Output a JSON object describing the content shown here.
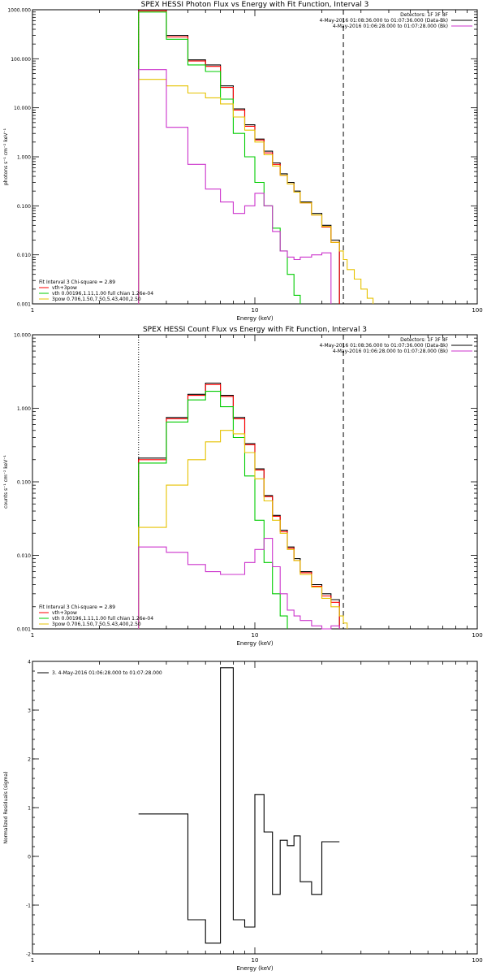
{
  "colors": {
    "total": "#ff0000",
    "data": "#000000",
    "vth": "#00cc00",
    "bpow": "#e6c200",
    "bk": "#cc33cc",
    "resid": "#000000"
  },
  "chart_data": [
    {
      "type": "line",
      "title": "SPEX HESSI Photon Flux vs Energy with Fit Function, Interval 3",
      "xlabel": "Energy (keV)",
      "ylabel": "photons s⁻¹ cm⁻² keV⁻¹",
      "xscale": "log",
      "yscale": "log",
      "xlim": [
        1,
        100
      ],
      "ylim": [
        0.001,
        1000
      ],
      "xticks": [
        {
          "v": 1,
          "label": "1"
        },
        {
          "v": 10,
          "label": "10"
        },
        {
          "v": 100,
          "label": "100"
        }
      ],
      "yticks": [
        {
          "v": 1000,
          "label": "1000.000"
        },
        {
          "v": 100,
          "label": "100.000"
        },
        {
          "v": 10,
          "label": "10.000"
        },
        {
          "v": 1,
          "label": "1.000"
        },
        {
          "v": 0.1,
          "label": "0.100"
        },
        {
          "v": 0.01,
          "label": "0.010"
        },
        {
          "v": 0.001,
          "label": "0.001"
        }
      ],
      "vlines": [
        {
          "x": 3.0,
          "style": "dotted"
        },
        {
          "x": 25,
          "style": "dashed"
        }
      ],
      "edges": [
        3,
        4,
        5,
        6,
        7,
        8,
        9,
        10,
        11,
        12,
        13,
        14,
        15,
        16,
        18,
        20,
        22,
        24,
        25,
        26,
        28,
        30,
        32,
        34,
        36,
        38,
        40
      ],
      "series": [
        {
          "key": "data",
          "color": "#000000",
          "values": [
            1000,
            300,
            95,
            75,
            28,
            9.5,
            4.5,
            2.3,
            1.3,
            0.75,
            0.45,
            0.3,
            0.2,
            0.12,
            0.07,
            0.04,
            0.02,
            null,
            null,
            null,
            null,
            null,
            null,
            null,
            null,
            null
          ]
        },
        {
          "key": "total",
          "color": "#ff0000",
          "values": [
            950,
            280,
            90,
            70,
            26,
            9,
            4.2,
            2.2,
            1.2,
            0.7,
            0.42,
            0.28,
            0.19,
            0.115,
            0.065,
            0.037,
            0.018,
            null,
            null,
            null,
            null,
            null,
            null,
            null,
            null,
            null
          ]
        },
        {
          "key": "vth",
          "color": "#00cc00",
          "values": [
            900,
            250,
            75,
            55,
            15,
            3,
            1.0,
            0.3,
            0.1,
            0.035,
            0.012,
            0.004,
            0.0015,
            null,
            null,
            null,
            null,
            null,
            null,
            null,
            null,
            null,
            null,
            null,
            null,
            null
          ]
        },
        {
          "key": "bpow",
          "color": "#e6c200",
          "values": [
            38,
            28,
            20,
            16,
            12,
            6.5,
            3.5,
            2.0,
            1.1,
            0.65,
            0.42,
            0.28,
            0.19,
            0.115,
            0.065,
            0.038,
            0.018,
            0.012,
            0.008,
            0.005,
            0.0032,
            0.002,
            0.0013,
            null,
            null,
            null
          ]
        },
        {
          "key": "bk",
          "color": "#cc33cc",
          "values": [
            60,
            4.0,
            0.7,
            0.22,
            0.12,
            0.07,
            0.1,
            0.18,
            0.1,
            0.03,
            0.012,
            0.009,
            0.008,
            0.009,
            0.01,
            0.011,
            null,
            null,
            null,
            null,
            null,
            null,
            null,
            null,
            null,
            null
          ]
        }
      ],
      "legend_top": {
        "placement": "top-right",
        "lines": [
          {
            "text": "Detectors: 1F 3F 8F",
            "color": null
          },
          {
            "text": "4-May-2016 01:08:36.000 to 01:07:36.000 (Data-Bk)",
            "color": "#000000"
          },
          {
            "text": "4-May-2016 01:06:28.000 to 01:07:28.000 (Bk)",
            "color": "#cc33cc"
          }
        ]
      },
      "legend_bottom": {
        "placement": "bottom-left",
        "lines": [
          {
            "text": "Fit Interval 3   Chi-square = 2.89",
            "color": null
          },
          {
            "text": "vth+3pow",
            "color": "#ff0000"
          },
          {
            "text": "vth 0.00196,1.11,1.00  full chian 1.26e-04",
            "color": "#00cc00"
          },
          {
            "text": "3pow 0.706,1.50,7.50,5.43,400,2.50",
            "color": "#e6c200"
          }
        ]
      }
    },
    {
      "type": "line",
      "title": "SPEX HESSI Count Flux vs Energy with Fit Function, Interval 3",
      "xlabel": "Energy (keV)",
      "ylabel": "counts s⁻¹ cm⁻² keV⁻¹",
      "xscale": "log",
      "yscale": "log",
      "xlim": [
        1,
        100
      ],
      "ylim": [
        0.001,
        10
      ],
      "xticks": [
        {
          "v": 1,
          "label": "1"
        },
        {
          "v": 10,
          "label": "10"
        },
        {
          "v": 100,
          "label": "100"
        }
      ],
      "yticks": [
        {
          "v": 10,
          "label": "10.000"
        },
        {
          "v": 1,
          "label": "1.000"
        },
        {
          "v": 0.1,
          "label": "0.100"
        },
        {
          "v": 0.01,
          "label": "0.010"
        },
        {
          "v": 0.001,
          "label": "0.001"
        }
      ],
      "vlines": [
        {
          "x": 3.0,
          "style": "dotted"
        },
        {
          "x": 25,
          "style": "dashed"
        }
      ],
      "edges": [
        3,
        4,
        5,
        6,
        7,
        8,
        9,
        10,
        11,
        12,
        13,
        14,
        15,
        16,
        18,
        20,
        22,
        24,
        25,
        26
      ],
      "series": [
        {
          "key": "data",
          "color": "#000000",
          "values": [
            0.21,
            0.75,
            1.55,
            2.2,
            1.5,
            0.75,
            0.33,
            0.15,
            0.065,
            0.035,
            0.022,
            0.013,
            0.009,
            0.006,
            0.004,
            0.003,
            0.0025,
            null,
            null
          ]
        },
        {
          "key": "total",
          "color": "#ff0000",
          "values": [
            0.2,
            0.72,
            1.5,
            2.1,
            1.45,
            0.72,
            0.32,
            0.145,
            0.063,
            0.034,
            0.021,
            0.0125,
            0.0085,
            0.0058,
            0.0038,
            0.0028,
            0.0023,
            null,
            null
          ]
        },
        {
          "key": "vth",
          "color": "#00cc00",
          "values": [
            0.18,
            0.65,
            1.3,
            1.7,
            1.05,
            0.4,
            0.12,
            0.03,
            0.008,
            0.003,
            0.0015,
            null,
            null,
            null,
            null,
            null,
            null,
            null,
            null
          ]
        },
        {
          "key": "bpow",
          "color": "#e6c200",
          "values": [
            0.024,
            0.09,
            0.2,
            0.35,
            0.5,
            0.45,
            0.25,
            0.11,
            0.055,
            0.03,
            0.02,
            0.012,
            0.0085,
            0.0055,
            0.0037,
            0.0026,
            0.002,
            0.0015,
            0.0012
          ]
        },
        {
          "key": "bk",
          "color": "#cc33cc",
          "values": [
            0.013,
            0.011,
            0.0075,
            0.006,
            0.0055,
            0.0055,
            0.008,
            0.012,
            0.017,
            0.007,
            0.003,
            0.0018,
            0.0015,
            0.0013,
            0.0011,
            0.001,
            0.0011,
            null,
            null
          ]
        }
      ],
      "legend_top": {
        "placement": "top-right",
        "lines": [
          {
            "text": "Detectors: 1F 3F 8F",
            "color": null
          },
          {
            "text": "4-May-2016 01:08:36.000 to 01:07:36.000 (Data-Bk)",
            "color": "#000000"
          },
          {
            "text": "4-May-2016 01:06:28.000 to 01:07:28.000 (Bk)",
            "color": "#cc33cc"
          }
        ]
      },
      "legend_bottom": {
        "placement": "bottom-left",
        "lines": [
          {
            "text": "Fit Interval 3   Chi-square = 2.89",
            "color": null
          },
          {
            "text": "vth+3pow",
            "color": "#ff0000"
          },
          {
            "text": "vth 0.00196,1.11,1.00  full chian 1.26e-04",
            "color": "#00cc00"
          },
          {
            "text": "3pow 0.706,1.50,7.50,5.43,400,2.50",
            "color": "#e6c200"
          }
        ]
      }
    },
    {
      "type": "line",
      "title": "",
      "xlabel": "Energy (keV)",
      "ylabel": "Normalized Residuals (sigma)",
      "xscale": "log",
      "yscale": "linear",
      "xlim": [
        1,
        100
      ],
      "ylim": [
        -2,
        4
      ],
      "xticks": [
        {
          "v": 1,
          "label": "1"
        },
        {
          "v": 10,
          "label": "10"
        },
        {
          "v": 100,
          "label": "100"
        }
      ],
      "yticks": [
        {
          "v": 4,
          "label": "4"
        },
        {
          "v": 3,
          "label": "3"
        },
        {
          "v": 2,
          "label": "2"
        },
        {
          "v": 1,
          "label": "1"
        },
        {
          "v": 0,
          "label": "0"
        },
        {
          "v": -1,
          "label": "-1"
        },
        {
          "v": -2,
          "label": "-2"
        }
      ],
      "vlines": [],
      "edges": [
        3,
        5,
        6,
        7,
        8,
        9,
        10,
        11,
        12,
        13,
        14,
        15,
        16,
        18,
        20,
        22,
        24,
        25
      ],
      "series": [
        {
          "key": "resid",
          "color": "#000000",
          "values": [
            0.87,
            -1.3,
            -1.78,
            3.87,
            -1.3,
            -1.45,
            1.27,
            0.5,
            -0.78,
            0.33,
            0.22,
            0.42,
            -0.52,
            -0.78,
            0.3,
            0.3,
            null
          ]
        }
      ],
      "legend_top": {
        "placement": "top-left",
        "lines": [
          {
            "text": "3.  4-May-2016 01:06:28.000 to 01:07:28.000",
            "color": "#000000"
          }
        ]
      },
      "legend_bottom": {
        "placement": "",
        "lines": []
      }
    }
  ]
}
